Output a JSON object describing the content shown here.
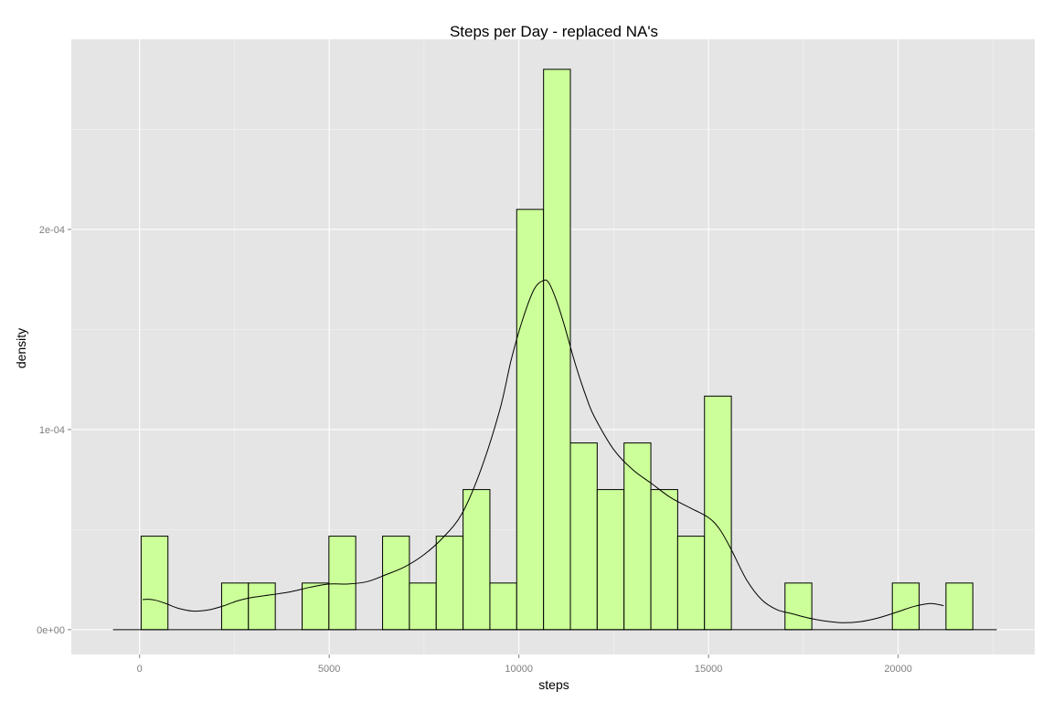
{
  "chart_data": {
    "type": "bar",
    "title": "Steps per Day - replaced NA's",
    "xlabel": "steps",
    "ylabel": "density",
    "xlim": [
      -1800,
      23600
    ],
    "ylim": [
      -1.24e-05,
      0.000295
    ],
    "x_ticks": [
      0,
      5000,
      10000,
      15000,
      20000
    ],
    "x_tick_labels": [
      "0",
      "5000",
      "10000",
      "15000",
      "20000"
    ],
    "y_ticks": [
      0,
      0.0001,
      0.0002
    ],
    "y_tick_labels": [
      "0e+00",
      "1e-04",
      "2e-04"
    ],
    "grid": true,
    "bin_width": 707.3,
    "bins": [
      {
        "x0": 41,
        "x1": 748,
        "density": 4.67e-05
      },
      {
        "x0": 2163,
        "x1": 2870,
        "density": 2.33e-05
      },
      {
        "x0": 2870,
        "x1": 3578,
        "density": 2.33e-05
      },
      {
        "x0": 4285,
        "x1": 4992,
        "density": 2.33e-05
      },
      {
        "x0": 4992,
        "x1": 5699,
        "density": 4.67e-05
      },
      {
        "x0": 6407,
        "x1": 7114,
        "density": 4.67e-05
      },
      {
        "x0": 7114,
        "x1": 7821,
        "density": 2.33e-05
      },
      {
        "x0": 7821,
        "x1": 8529,
        "density": 4.67e-05
      },
      {
        "x0": 8529,
        "x1": 9236,
        "density": 7e-05
      },
      {
        "x0": 9236,
        "x1": 9943,
        "density": 2.33e-05
      },
      {
        "x0": 9943,
        "x1": 10651,
        "density": 0.00021
      },
      {
        "x0": 10651,
        "x1": 11358,
        "density": 0.00028
      },
      {
        "x0": 11358,
        "x1": 12065,
        "density": 9.33e-05
      },
      {
        "x0": 12065,
        "x1": 12773,
        "density": 7e-05
      },
      {
        "x0": 12773,
        "x1": 13480,
        "density": 9.33e-05
      },
      {
        "x0": 13480,
        "x1": 14187,
        "density": 7e-05
      },
      {
        "x0": 14187,
        "x1": 14894,
        "density": 4.67e-05
      },
      {
        "x0": 14894,
        "x1": 15602,
        "density": 0.0001167
      },
      {
        "x0": 17016,
        "x1": 17724,
        "density": 2.33e-05
      },
      {
        "x0": 19846,
        "x1": 20553,
        "density": 2.33e-05
      },
      {
        "x0": 21260,
        "x1": 21968,
        "density": 2.33e-05
      }
    ],
    "baseline_range": [
      -700,
      22600
    ],
    "density_curve": {
      "x": [
        80,
        200,
        400,
        700,
        1000,
        1400,
        1800,
        2200,
        2600,
        3000,
        3500,
        4000,
        4500,
        5000,
        5500,
        6000,
        6500,
        7000,
        7500,
        8000,
        8500,
        9000,
        9500,
        9800,
        10100,
        10400,
        10650,
        10800,
        11000,
        11200,
        11500,
        11800,
        12000,
        12500,
        13000,
        13500,
        14000,
        14500,
        15000,
        15300,
        15600,
        16000,
        16400,
        16800,
        17200,
        17600,
        18000,
        18500,
        19000,
        19500,
        20000,
        20400,
        20800,
        21000,
        21200
      ],
      "y": [
        1.5e-05,
        1.52e-05,
        1.48e-05,
        1.3e-05,
        1.08e-05,
        9.3e-06,
        9.8e-06,
        1.18e-05,
        1.45e-05,
        1.62e-05,
        1.75e-05,
        1.9e-05,
        2.12e-05,
        2.28e-05,
        2.28e-05,
        2.4e-05,
        2.75e-05,
        3.15e-05,
        3.75e-05,
        4.6e-05,
        5.8e-05,
        8e-05,
        0.00011,
        0.000135,
        0.000155,
        0.00017,
        0.0001745,
        0.000173,
        0.000164,
        0.000152,
        0.000132,
        0.000115,
        0.000106,
        9e-05,
        8e-05,
        7.3e-05,
        6.6e-05,
        6.1e-05,
        5.6e-05,
        5e-05,
        4e-05,
        2.5e-05,
        1.5e-05,
        1e-05,
        8e-06,
        6e-06,
        4.5e-06,
        3.5e-06,
        4e-06,
        6e-06,
        9e-06,
        1.15e-05,
        1.3e-05,
        1.28e-05,
        1.2e-05
      ]
    },
    "colors": {
      "panel": "#e5e5e5",
      "grid_major": "#ffffff",
      "grid_minor": "#f2f2f2",
      "bar_fill": "#ccff99",
      "bar_stroke": "#000000",
      "curve": "#000000"
    }
  }
}
